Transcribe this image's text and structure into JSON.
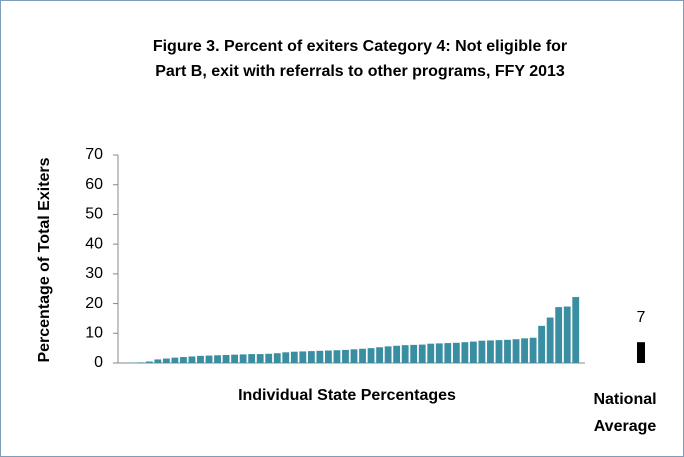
{
  "chart_data": {
    "type": "bar",
    "title_lines": [
      "Figure 3. Percent of exiters Category 4: Not eligible for",
      "Part B, exit with referrals to other programs, FFY 2013"
    ],
    "ylabel": "Percentage of Total Exiters",
    "xlabel": "Individual State Percentages",
    "values": [
      0.1,
      0.2,
      0.5,
      1.2,
      1.5,
      1.8,
      2,
      2.2,
      2.4,
      2.5,
      2.6,
      2.7,
      2.8,
      2.9,
      3,
      3,
      3.1,
      3.3,
      3.6,
      3.8,
      3.9,
      4,
      4.1,
      4.2,
      4.3,
      4.4,
      4.6,
      4.8,
      5,
      5.3,
      5.6,
      5.8,
      6,
      6.1,
      6.2,
      6.5,
      6.6,
      6.7,
      6.8,
      7,
      7.2,
      7.5,
      7.6,
      7.7,
      7.8,
      8,
      8.3,
      8.5,
      12.5,
      15.3,
      18.8,
      19,
      22.2
    ],
    "color": "#3a8ea2",
    "national_average": {
      "label_lines": [
        "National",
        "Average"
      ],
      "value": 7,
      "color": "#000000"
    },
    "ylim": [
      0,
      70
    ],
    "yticks": [
      0,
      10,
      20,
      30,
      40,
      50,
      60,
      70
    ],
    "grid": false
  }
}
